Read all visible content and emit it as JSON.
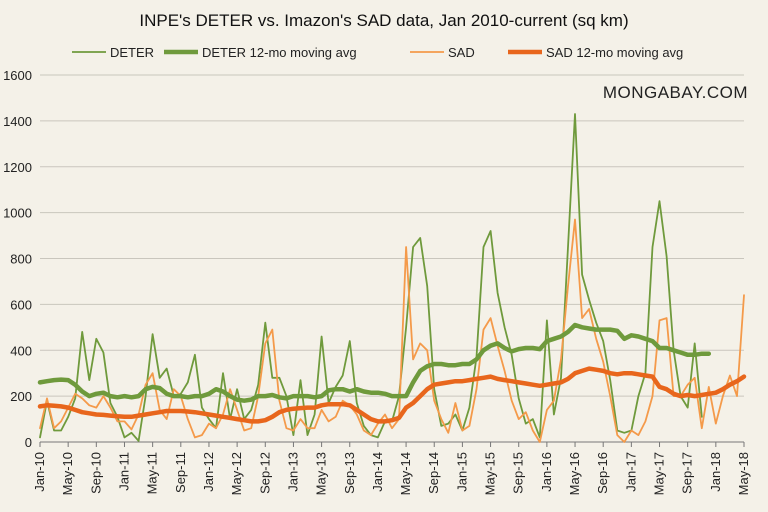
{
  "chart_data": {
    "type": "line",
    "title": "INPE's DETER vs. Imazon's SAD data, Jan 2010-current (sq km)",
    "watermark": "MONGABAY.COM",
    "xlabel": "",
    "ylabel": "",
    "ylim": [
      0,
      1600
    ],
    "yticks": [
      0,
      200,
      400,
      600,
      800,
      1000,
      1200,
      1400,
      1600
    ],
    "grid": true,
    "legend_position": "top",
    "x_ticks": [
      "Jan-10",
      "May-10",
      "Sep-10",
      "Jan-11",
      "May-11",
      "Sep-11",
      "Jan-12",
      "May-12",
      "Sep-12",
      "Jan-13",
      "May-13",
      "Sep-13",
      "Jan-14",
      "May-14",
      "Sep-14",
      "Jan-15",
      "May-15",
      "Sep-15",
      "Jan-16",
      "May-16",
      "Sep-16",
      "Jan-17",
      "May-17",
      "Sep-17",
      "Jan-18",
      "May-18"
    ],
    "series": [
      {
        "name": "DETER",
        "color": "#6f9a3c",
        "width": 1.8,
        "values": [
          20,
          180,
          50,
          50,
          110,
          190,
          480,
          270,
          450,
          390,
          170,
          110,
          20,
          40,
          5,
          200,
          470,
          280,
          320,
          200,
          210,
          260,
          380,
          150,
          100,
          60,
          300,
          100,
          230,
          100,
          140,
          250,
          520,
          280,
          280,
          200,
          30,
          270,
          30,
          120,
          460,
          170,
          240,
          290,
          440,
          170,
          70,
          30,
          20,
          90,
          90,
          200,
          500,
          850,
          890,
          680,
          230,
          70,
          80,
          120,
          50,
          150,
          370,
          850,
          920,
          650,
          500,
          380,
          190,
          80,
          100,
          20,
          530,
          120,
          280,
          850,
          1430,
          730,
          620,
          520,
          440,
          270,
          50,
          40,
          50,
          200,
          300,
          850,
          1050,
          810,
          400,
          200,
          150,
          430,
          110,
          null,
          null,
          null,
          null,
          null,
          null
        ]
      },
      {
        "name": "DETER 12-mo moving avg",
        "color": "#6f9a3c",
        "width": 4.5,
        "values": [
          260,
          265,
          270,
          272,
          270,
          250,
          220,
          200,
          210,
          215,
          200,
          195,
          200,
          195,
          200,
          230,
          240,
          235,
          210,
          200,
          200,
          195,
          200,
          200,
          210,
          230,
          220,
          200,
          185,
          180,
          185,
          200,
          200,
          205,
          195,
          190,
          200,
          200,
          200,
          195,
          200,
          225,
          230,
          230,
          220,
          230,
          220,
          215,
          215,
          210,
          200,
          200,
          200,
          260,
          310,
          330,
          340,
          340,
          335,
          335,
          340,
          340,
          360,
          400,
          420,
          430,
          410,
          395,
          405,
          410,
          410,
          405,
          440,
          450,
          460,
          480,
          510,
          500,
          495,
          490,
          490,
          490,
          485,
          450,
          465,
          460,
          450,
          440,
          410,
          410,
          400,
          390,
          380,
          380,
          385,
          385,
          null,
          null,
          null,
          null,
          null
        ]
      },
      {
        "name": "SAD",
        "color": "#f49a4a",
        "width": 1.8,
        "values": [
          60,
          190,
          60,
          90,
          150,
          210,
          190,
          160,
          150,
          200,
          150,
          90,
          90,
          55,
          120,
          250,
          300,
          140,
          100,
          230,
          200,
          100,
          20,
          30,
          80,
          60,
          120,
          230,
          140,
          50,
          60,
          200,
          430,
          490,
          180,
          60,
          50,
          100,
          60,
          60,
          140,
          90,
          110,
          180,
          160,
          120,
          50,
          30,
          80,
          120,
          60,
          100,
          850,
          360,
          430,
          400,
          180,
          100,
          40,
          170,
          50,
          70,
          230,
          490,
          540,
          420,
          310,
          180,
          100,
          130,
          50,
          0,
          140,
          180,
          360,
          680,
          970,
          540,
          580,
          450,
          350,
          200,
          30,
          0,
          50,
          30,
          90,
          200,
          530,
          540,
          200,
          200,
          250,
          280,
          60,
          240,
          80,
          200,
          290,
          200,
          640
        ]
      },
      {
        "name": "SAD 12-mo moving avg",
        "color": "#e8661c",
        "width": 4.5,
        "values": [
          155,
          160,
          158,
          155,
          150,
          140,
          130,
          125,
          120,
          118,
          115,
          112,
          110,
          110,
          115,
          120,
          125,
          130,
          135,
          135,
          135,
          133,
          130,
          125,
          120,
          115,
          110,
          105,
          100,
          95,
          90,
          90,
          95,
          110,
          130,
          140,
          145,
          148,
          150,
          150,
          160,
          165,
          165,
          165,
          160,
          140,
          120,
          100,
          90,
          90,
          95,
          105,
          150,
          170,
          200,
          230,
          250,
          255,
          260,
          265,
          265,
          270,
          275,
          280,
          285,
          275,
          270,
          265,
          260,
          255,
          250,
          245,
          250,
          255,
          260,
          275,
          300,
          310,
          320,
          315,
          310,
          300,
          295,
          300,
          300,
          295,
          290,
          285,
          240,
          230,
          210,
          200,
          205,
          200,
          205,
          210,
          215,
          230,
          250,
          265,
          285
        ]
      }
    ]
  }
}
